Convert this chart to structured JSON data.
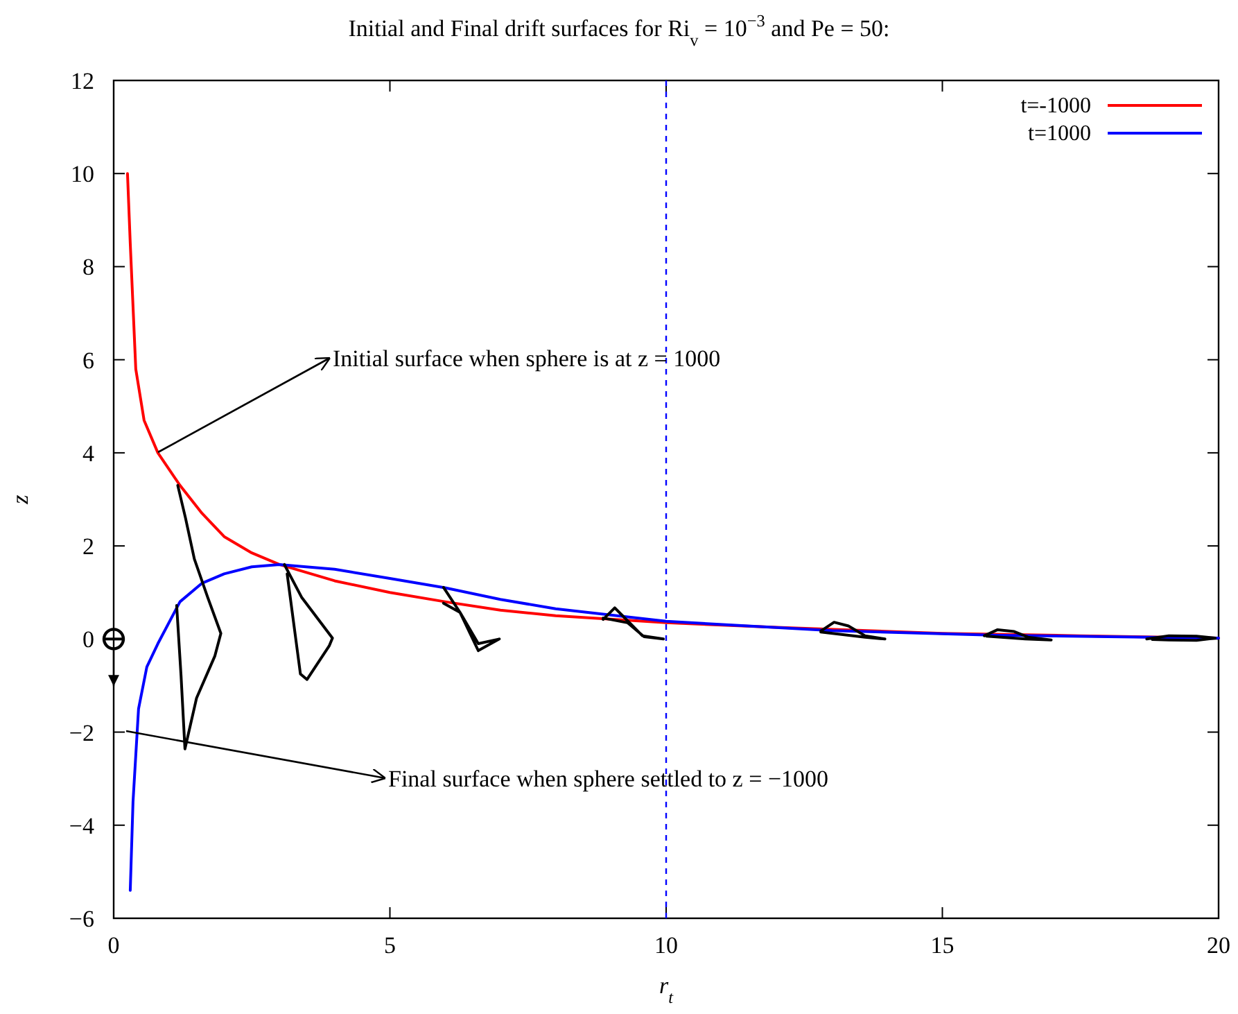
{
  "chart_data": {
    "type": "line",
    "title": "Initial and Final drift surfaces for Ri$_{v}$ = 10$^{−3}$ and Pe = 50:",
    "xlabel": "r$_{t}$",
    "ylabel": "z",
    "xlim": [
      0,
      20
    ],
    "ylim": [
      -6,
      12
    ],
    "xticks": [
      0,
      5,
      10,
      15,
      20
    ],
    "yticks": [
      {
        "value": -6,
        "label": "−6"
      },
      {
        "value": -4,
        "label": "−4"
      },
      {
        "value": -2,
        "label": "−2"
      },
      0,
      2,
      4,
      6,
      8,
      10,
      12
    ],
    "grid": false,
    "legend": "top right",
    "marker": "none",
    "line_style": "solid",
    "series": [
      {
        "name": "t=-1000",
        "color": "#ff0000",
        "x": [
          0.25,
          0.3,
          0.4,
          0.55,
          0.8,
          1.2,
          1.6,
          2,
          2.5,
          3,
          4,
          5,
          6,
          7,
          8,
          10,
          12,
          15,
          17.5,
          20
        ],
        "values": [
          10,
          8.5,
          5.8,
          4.7,
          4,
          3.3,
          2.7,
          2.2,
          1.85,
          1.6,
          1.25,
          1.0,
          0.8,
          0.62,
          0.5,
          0.35,
          0.25,
          0.12,
          0.07,
          0.02
        ]
      },
      {
        "name": "t=1000",
        "color": "#0000ff",
        "x": [
          0.3,
          0.35,
          0.45,
          0.6,
          0.8,
          1.2,
          1.6,
          2,
          2.5,
          3,
          4,
          5,
          6,
          7,
          8,
          10,
          13,
          16,
          18,
          20
        ],
        "values": [
          -5.4,
          -3.5,
          -1.5,
          -0.6,
          -0.1,
          0.8,
          1.2,
          1.4,
          1.55,
          1.6,
          1.5,
          1.3,
          1.1,
          0.85,
          0.65,
          0.38,
          0.18,
          0.08,
          0.05,
          0.02
        ]
      },
      {
        "color": "#000000",
        "x": [
          1.16,
          1.3,
          1.46,
          1.7,
          1.94,
          1.83,
          1.5,
          1.29,
          1.22,
          1.14,
          null,
          3.09,
          3.4,
          3.96,
          3.9,
          3.5,
          3.38,
          3.14,
          null,
          5.97,
          6.27,
          6.6,
          6.98,
          6.6,
          6.27,
          5.97,
          null,
          8.86,
          9.07,
          9.32,
          9.57,
          9.95,
          9.6,
          9.3,
          8.86,
          null,
          12.8,
          13.04,
          13.3,
          13.6,
          13.96,
          13.6,
          12.8,
          null,
          15.76,
          16,
          16.3,
          16.55,
          16.97,
          16.5,
          15.8,
          null,
          18.7,
          19.1,
          19.6,
          19.94,
          19.6,
          19.1,
          18.8
        ],
        "values": [
          3.3,
          2.6,
          1.72,
          0.9,
          0.12,
          -0.37,
          -1.27,
          -2.36,
          -0.8,
          0.72,
          null,
          1.6,
          0.9,
          0.02,
          -0.15,
          -0.87,
          -0.75,
          1.4,
          null,
          1.11,
          0.57,
          -0.25,
          0,
          -0.1,
          0.57,
          0.77,
          null,
          0.42,
          0.67,
          0.37,
          0.07,
          0,
          0.05,
          0.35,
          0.45,
          null,
          0.17,
          0.36,
          0.28,
          0.07,
          0,
          0.04,
          0.15,
          null,
          0.07,
          0.2,
          0.16,
          0.04,
          -0.02,
          0,
          0.06,
          null,
          0,
          0.07,
          0.06,
          0.02,
          -0.03,
          -0.02,
          -0.01
        ]
      }
    ],
    "ref_lines": [
      {
        "axis": "x",
        "value": 10,
        "color": "#0000ff",
        "line_style": "dashed"
      }
    ],
    "annotations": [
      "Initial surface when sphere is at z = 1000",
      "Final surface when sphere settled to z = −1000"
    ]
  }
}
